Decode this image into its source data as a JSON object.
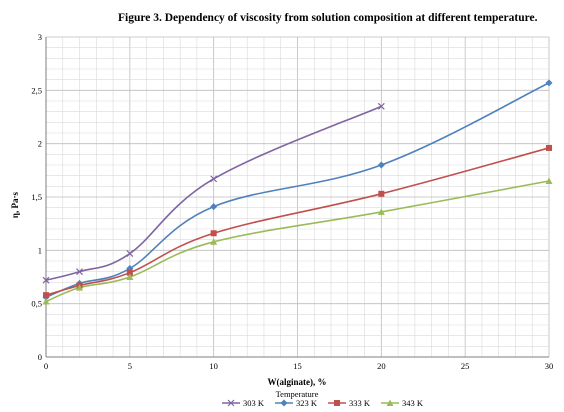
{
  "chart_data": {
    "type": "line",
    "title": "Figure 3. Dependency of viscosity from solution composition at different temperature.",
    "xlabel": "W(alginate), %",
    "ylabel": "η, Pa·s",
    "xlim": [
      0,
      30
    ],
    "ylim": [
      0,
      3
    ],
    "x_ticks": [
      "0",
      "5",
      "10",
      "15",
      "20",
      "25",
      "30"
    ],
    "y_ticks": [
      "0",
      "0,5",
      "1",
      "1,5",
      "2",
      "2,5",
      "3"
    ],
    "grid": true,
    "legend_title": "Temperature",
    "legend_position": "bottom",
    "series": [
      {
        "name": "303 K",
        "color": "#8064a2",
        "marker": "x",
        "x": [
          0,
          2,
          5,
          10,
          20
        ],
        "y": [
          0.72,
          0.8,
          0.97,
          1.67,
          2.35
        ]
      },
      {
        "name": "323 K",
        "color": "#4f81bd",
        "marker": "diamond",
        "x": [
          0,
          2,
          5,
          10,
          20,
          30
        ],
        "y": [
          0.56,
          0.69,
          0.83,
          1.41,
          1.8,
          2.57
        ]
      },
      {
        "name": "333 K",
        "color": "#c0504d",
        "marker": "square",
        "x": [
          0,
          2,
          5,
          10,
          20,
          30
        ],
        "y": [
          0.58,
          0.67,
          0.79,
          1.16,
          1.53,
          1.96
        ]
      },
      {
        "name": "343 K",
        "color": "#9bbb59",
        "marker": "triangle",
        "x": [
          0,
          2,
          5,
          10,
          20,
          30
        ],
        "y": [
          0.52,
          0.65,
          0.75,
          1.08,
          1.36,
          1.65
        ]
      }
    ]
  }
}
